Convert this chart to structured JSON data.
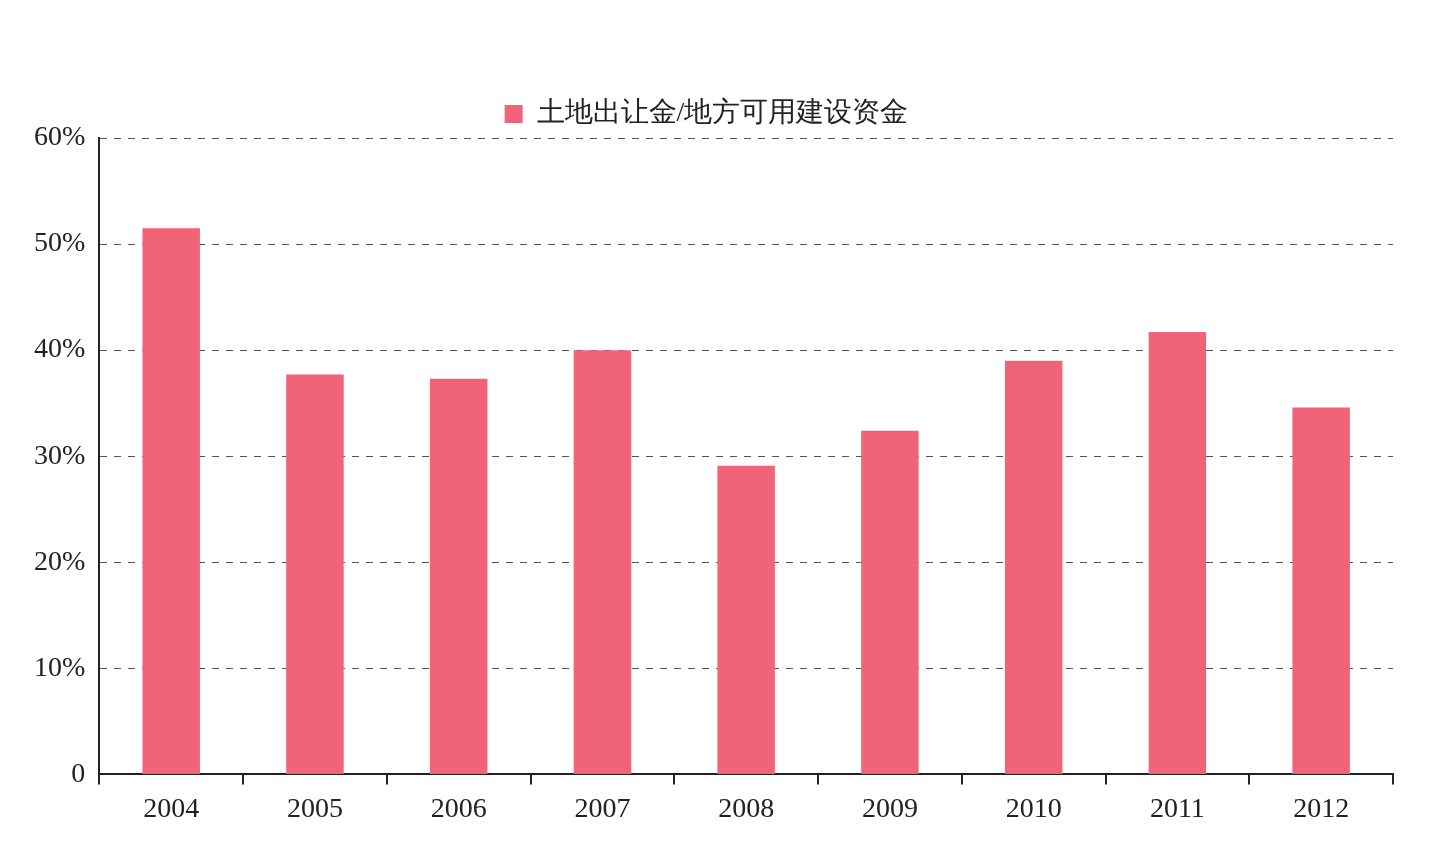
{
  "chart_data": {
    "type": "bar",
    "categories": [
      "2004",
      "2005",
      "2006",
      "2007",
      "2008",
      "2009",
      "2010",
      "2011",
      "2012"
    ],
    "series": [
      {
        "name": "土地出让金/地方可用建设资金",
        "color": "#f06379",
        "values": [
          51.5,
          37.7,
          37.3,
          40.0,
          29.1,
          32.4,
          39.0,
          41.7,
          34.6
        ]
      }
    ],
    "ylim": [
      0,
      60
    ],
    "yticks": [
      {
        "value": 0,
        "label": "0"
      },
      {
        "value": 10,
        "label": "10%"
      },
      {
        "value": 20,
        "label": "20%"
      },
      {
        "value": 30,
        "label": "30%"
      },
      {
        "value": 40,
        "label": "40%"
      },
      {
        "value": 50,
        "label": "50%"
      },
      {
        "value": 60,
        "label": "60%"
      }
    ],
    "grid": "y",
    "legend": "top"
  }
}
